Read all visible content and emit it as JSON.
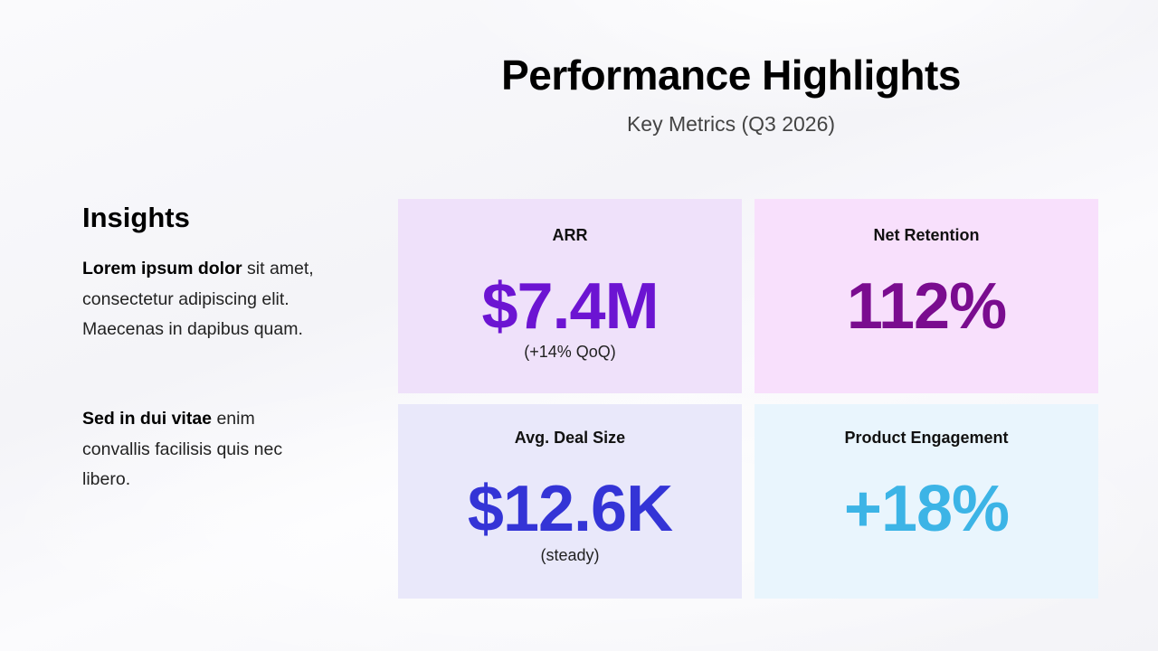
{
  "header": {
    "title": "Performance Highlights",
    "subtitle": "Key Metrics (Q3 2026)"
  },
  "insights": {
    "heading": "Insights",
    "paragraphs": [
      {
        "bold": "Lorem ipsum dolor",
        "text": " sit amet, consectetur adipiscing elit. Maecenas in dapibus quam."
      },
      {
        "bold": "Sed in dui vitae",
        "text": " enim convallis facilisis quis nec libero."
      }
    ]
  },
  "metrics": [
    {
      "label": "ARR",
      "value": "$7.4M",
      "note": "(+14% QoQ)",
      "color": "#6c14d2",
      "bg": "#efe1fa"
    },
    {
      "label": "Net Retention",
      "value": "112%",
      "note": "",
      "color": "#7a0c8f",
      "bg": "#f8e0fc"
    },
    {
      "label": "Avg. Deal Size",
      "value": "$12.6K",
      "note": "(steady)",
      "color": "#3434d6",
      "bg": "#e9e8fa"
    },
    {
      "label": "Product Engagement",
      "value": "+18%",
      "note": "",
      "color": "#3cb4e6",
      "bg": "#e9f5fd"
    }
  ]
}
